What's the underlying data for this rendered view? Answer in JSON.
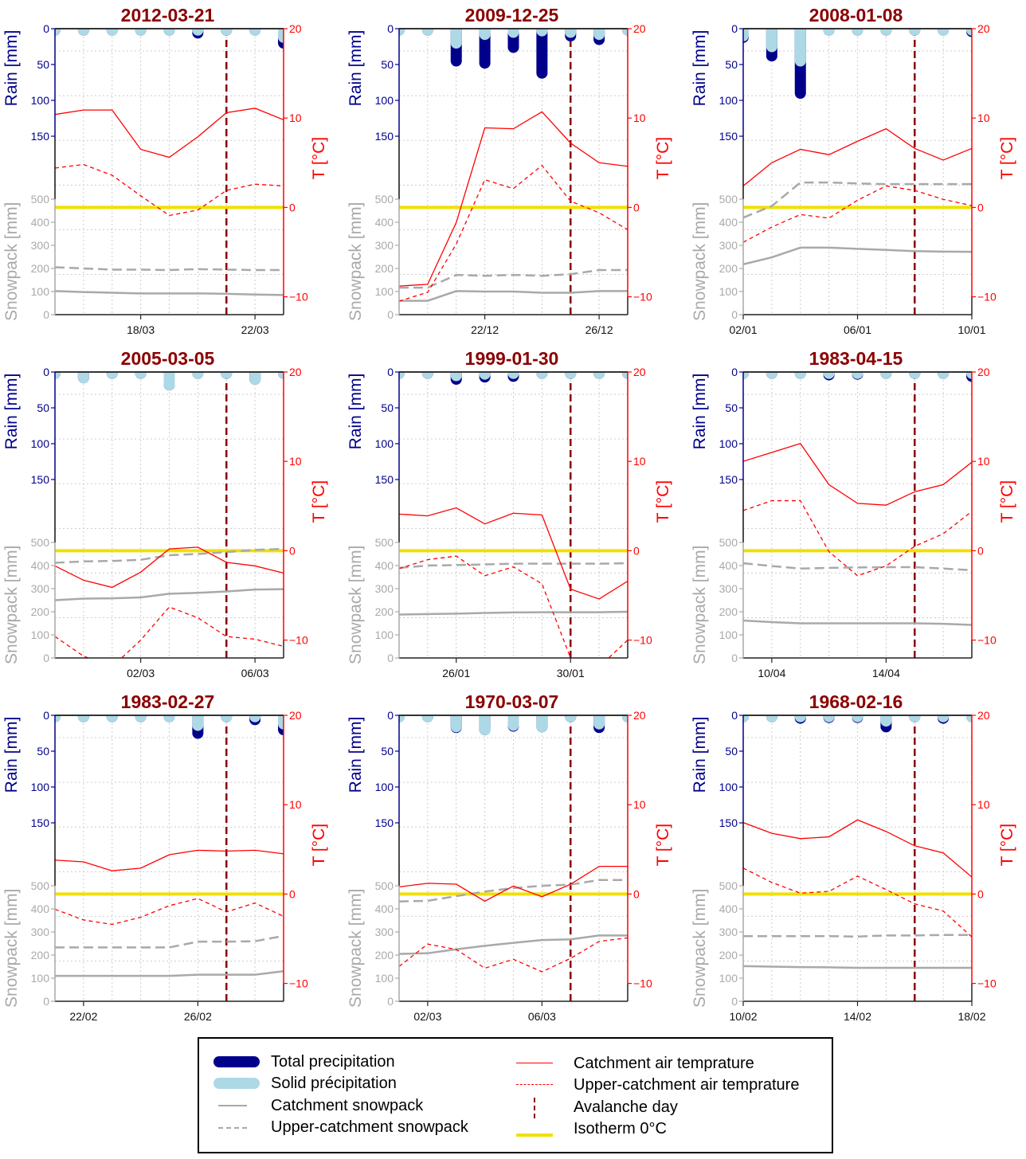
{
  "figure": {
    "axis_labels": {
      "rain": "Rain [mm]",
      "snowpack": "Snowpack [mm]",
      "temperature": "T [°C]"
    },
    "rain_ticks": [
      0,
      50,
      100,
      150
    ],
    "snow_ticks": [
      0,
      100,
      200,
      300,
      400,
      500
    ],
    "temp_ticks": [
      -10,
      0,
      10,
      20
    ],
    "colors": {
      "title": "#8b0000",
      "total_precip": "#00008b",
      "solid_precip": "#add8e6",
      "snowpack": "#a9a9a9",
      "temperature": "#ff0000",
      "avalanche": "#8b0000",
      "isotherm": "#f0e000",
      "rain_axis": "#00008b"
    }
  },
  "legend": {
    "items": [
      {
        "label": "Total precipitation",
        "key": "total_precip"
      },
      {
        "label": "Solid précipitation",
        "key": "solid_precip"
      },
      {
        "label": "Catchment snowpack",
        "key": "snow_catch"
      },
      {
        "label": "Upper-catchment snowpack",
        "key": "snow_upper"
      },
      {
        "label": "Catchment air temprature",
        "key": "temp_catch"
      },
      {
        "label": "Upper-catchment air temprature",
        "key": "temp_upper"
      },
      {
        "label": "Avalanche day",
        "key": "avalanche"
      },
      {
        "label": "Isotherm 0°C",
        "key": "isotherm"
      }
    ]
  },
  "chart_data": [
    {
      "type": "line",
      "title": "2012-03-21",
      "x_ticks": [
        {
          "day": 3,
          "label": "18/03"
        },
        {
          "day": 7,
          "label": "22/03"
        }
      ],
      "avalanche_day": 6,
      "rain_ylim": [
        0,
        200
      ],
      "snow_ylim": [
        0,
        500
      ],
      "temp_ylim": [
        -12,
        20
      ],
      "series": {
        "total_precip": [
          2,
          2,
          2,
          2,
          2,
          6,
          2,
          2,
          20
        ],
        "solid_precip": [
          2,
          2,
          2,
          2,
          2,
          2,
          2,
          2,
          12
        ],
        "snow_catch": [
          102,
          98,
          95,
          92,
          92,
          92,
          90,
          87,
          85
        ],
        "snow_upper": [
          205,
          200,
          195,
          195,
          193,
          197,
          195,
          193,
          193
        ],
        "temp_catch": [
          10.4,
          10.9,
          10.9,
          6.5,
          5.6,
          7.9,
          10.6,
          11.1,
          9.8
        ],
        "temp_upper": [
          4.4,
          4.8,
          3.6,
          1.3,
          -0.9,
          -0.3,
          1.9,
          2.6,
          2.4
        ]
      }
    },
    {
      "type": "line",
      "title": "2009-12-25",
      "x_ticks": [
        {
          "day": 3,
          "label": "22/12"
        },
        {
          "day": 7,
          "label": "26/12"
        }
      ],
      "avalanche_day": 6,
      "rain_ylim": [
        0,
        200
      ],
      "snow_ylim": [
        0,
        500
      ],
      "temp_ylim": [
        -12,
        20
      ],
      "series": {
        "total_precip": [
          2,
          2,
          45,
          48,
          26,
          62,
          10,
          15,
          2
        ],
        "solid_precip": [
          2,
          2,
          20,
          8,
          5,
          3,
          5,
          8,
          2
        ],
        "snow_catch": [
          60,
          60,
          102,
          100,
          100,
          95,
          95,
          102,
          102
        ],
        "snow_upper": [
          117,
          117,
          172,
          168,
          172,
          168,
          175,
          193,
          193
        ],
        "temp_catch": [
          -8.8,
          -8.6,
          -1.7,
          8.9,
          8.8,
          10.7,
          7.2,
          5.0,
          4.6
        ],
        "temp_upper": [
          -10.5,
          -9.5,
          -4.1,
          3.1,
          2.1,
          4.7,
          0.7,
          -0.6,
          -2.5
        ]
      }
    },
    {
      "type": "line",
      "title": "2008-01-08",
      "x_ticks": [
        {
          "day": 0,
          "label": "02/01"
        },
        {
          "day": 4,
          "label": "06/01"
        },
        {
          "day": 8,
          "label": "10/01"
        }
      ],
      "avalanche_day": 6,
      "rain_ylim": [
        0,
        200
      ],
      "snow_ylim": [
        0,
        500
      ],
      "temp_ylim": [
        -12,
        20
      ],
      "series": {
        "total_precip": [
          12,
          38,
          90,
          2,
          2,
          2,
          2,
          2,
          4
        ],
        "solid_precip": [
          10,
          25,
          45,
          2,
          2,
          2,
          2,
          2,
          2
        ],
        "snow_catch": [
          218,
          248,
          290,
          290,
          285,
          280,
          275,
          273,
          272
        ],
        "snow_upper": [
          420,
          470,
          572,
          572,
          568,
          565,
          565,
          565,
          565
        ],
        "temp_catch": [
          2.4,
          5.0,
          6.5,
          5.9,
          7.4,
          8.8,
          6.6,
          5.3,
          6.6
        ],
        "temp_upper": [
          -3.9,
          -2.2,
          -0.8,
          -1.2,
          0.8,
          2.4,
          1.9,
          0.9,
          0.2
        ]
      }
    },
    {
      "type": "line",
      "title": "2005-03-05",
      "x_ticks": [
        {
          "day": 3,
          "label": "02/03"
        },
        {
          "day": 7,
          "label": "06/03"
        }
      ],
      "avalanche_day": 6,
      "rain_ylim": [
        0,
        200
      ],
      "snow_ylim": [
        0,
        500
      ],
      "temp_ylim": [
        -12,
        20
      ],
      "series": {
        "total_precip": [
          2,
          8,
          2,
          2,
          18,
          2,
          2,
          10,
          2
        ],
        "solid_precip": [
          2,
          8,
          2,
          2,
          18,
          2,
          2,
          10,
          2
        ],
        "snow_catch": [
          250,
          257,
          258,
          262,
          278,
          282,
          288,
          296,
          298
        ],
        "snow_upper": [
          412,
          418,
          420,
          425,
          445,
          450,
          458,
          468,
          472
        ],
        "temp_catch": [
          -1.7,
          -3.3,
          -4.1,
          -2.4,
          0.2,
          0.4,
          -1.3,
          -1.7,
          -2.5
        ],
        "temp_upper": [
          -9.6,
          -11.8,
          -13,
          -10,
          -6.3,
          -7.5,
          -9.6,
          -9.9,
          -10.7
        ]
      }
    },
    {
      "type": "line",
      "title": "1999-01-30",
      "x_ticks": [
        {
          "day": 2,
          "label": "26/01"
        },
        {
          "day": 6,
          "label": "30/01"
        }
      ],
      "avalanche_day": 6,
      "rain_ylim": [
        0,
        200
      ],
      "snow_ylim": [
        0,
        500
      ],
      "temp_ylim": [
        -12,
        20
      ],
      "series": {
        "total_precip": [
          2,
          2,
          10,
          7,
          6,
          2,
          2,
          2,
          2
        ],
        "solid_precip": [
          2,
          2,
          5,
          3,
          2,
          2,
          2,
          2,
          2
        ],
        "snow_catch": [
          188,
          190,
          192,
          195,
          197,
          198,
          198,
          198,
          200
        ],
        "snow_upper": [
          390,
          400,
          402,
          405,
          408,
          408,
          408,
          408,
          410
        ],
        "temp_catch": [
          4.1,
          3.9,
          4.8,
          3.0,
          4.2,
          4.0,
          -4.3,
          -5.4,
          -3.4
        ],
        "temp_upper": [
          -2.0,
          -1.0,
          -0.6,
          -2.8,
          -1.8,
          -3.7,
          -12,
          -13,
          -10.0
        ]
      }
    },
    {
      "type": "line",
      "title": "1983-04-15",
      "x_ticks": [
        {
          "day": 1,
          "label": "10/04"
        },
        {
          "day": 5,
          "label": "14/04"
        }
      ],
      "avalanche_day": 6,
      "rain_ylim": [
        0,
        200
      ],
      "snow_ylim": [
        0,
        500
      ],
      "temp_ylim": [
        -12,
        20
      ],
      "series": {
        "total_precip": [
          2,
          2,
          2,
          4,
          3,
          2,
          2,
          2,
          6
        ],
        "solid_precip": [
          2,
          2,
          2,
          2,
          2,
          2,
          2,
          2,
          2
        ],
        "snow_catch": [
          162,
          155,
          150,
          150,
          150,
          150,
          150,
          148,
          143
        ],
        "snow_upper": [
          410,
          398,
          387,
          390,
          392,
          393,
          393,
          387,
          380
        ],
        "temp_catch": [
          10.0,
          11.0,
          12.0,
          7.4,
          5.3,
          5.1,
          6.6,
          7.4,
          9.9
        ],
        "temp_upper": [
          4.5,
          5.6,
          5.6,
          -0.1,
          -2.8,
          -1.7,
          0.5,
          1.9,
          4.4
        ]
      }
    },
    {
      "type": "line",
      "title": "1983-02-27",
      "x_ticks": [
        {
          "day": 1,
          "label": "22/02"
        },
        {
          "day": 5,
          "label": "26/02"
        }
      ],
      "avalanche_day": 6,
      "rain_ylim": [
        0,
        200
      ],
      "snow_ylim": [
        0,
        500
      ],
      "temp_ylim": [
        -12,
        20
      ],
      "series": {
        "total_precip": [
          2,
          2,
          2,
          2,
          2,
          25,
          2,
          6,
          20
        ],
        "solid_precip": [
          2,
          2,
          2,
          2,
          2,
          14,
          2,
          2,
          12
        ],
        "snow_catch": [
          110,
          110,
          110,
          110,
          110,
          115,
          115,
          115,
          130
        ],
        "snow_upper": [
          233,
          233,
          233,
          233,
          233,
          258,
          258,
          260,
          283
        ],
        "temp_catch": [
          3.8,
          3.6,
          2.6,
          2.9,
          4.4,
          4.9,
          4.8,
          4.9,
          4.5
        ],
        "temp_upper": [
          -1.7,
          -2.9,
          -3.4,
          -2.6,
          -1.3,
          -0.5,
          -2.0,
          -1.0,
          -2.5
        ]
      }
    },
    {
      "type": "line",
      "title": "1970-03-07",
      "x_ticks": [
        {
          "day": 1,
          "label": "02/03"
        },
        {
          "day": 5,
          "label": "06/03"
        }
      ],
      "avalanche_day": 6,
      "rain_ylim": [
        0,
        200
      ],
      "snow_ylim": [
        0,
        500
      ],
      "temp_ylim": [
        -12,
        20
      ],
      "series": {
        "total_precip": [
          2,
          2,
          17,
          20,
          15,
          16,
          2,
          17,
          2
        ],
        "solid_precip": [
          2,
          2,
          16,
          20,
          14,
          16,
          2,
          12,
          2
        ],
        "snow_catch": [
          205,
          208,
          225,
          240,
          253,
          265,
          268,
          285,
          285
        ],
        "snow_upper": [
          432,
          435,
          455,
          475,
          490,
          500,
          505,
          525,
          525
        ],
        "temp_catch": [
          0.8,
          1.2,
          1.1,
          -0.8,
          0.9,
          -0.3,
          1.1,
          3.1,
          3.1
        ],
        "temp_upper": [
          -8.1,
          -5.6,
          -6.2,
          -8.3,
          -7.3,
          -8.7,
          -7.2,
          -5.3,
          -4.9
        ]
      }
    },
    {
      "type": "line",
      "title": "1968-02-16",
      "x_ticks": [
        {
          "day": 0,
          "label": "10/02"
        },
        {
          "day": 4,
          "label": "14/02"
        },
        {
          "day": 8,
          "label": "18/02"
        }
      ],
      "avalanche_day": 6,
      "rain_ylim": [
        0,
        200
      ],
      "snow_ylim": [
        0,
        500
      ],
      "temp_ylim": [
        -12,
        20
      ],
      "series": {
        "total_precip": [
          2,
          2,
          4,
          3,
          3,
          16,
          2,
          4,
          2
        ],
        "solid_precip": [
          2,
          2,
          2,
          2,
          2,
          8,
          2,
          2,
          2
        ],
        "snow_catch": [
          152,
          150,
          148,
          147,
          145,
          145,
          145,
          145,
          145
        ],
        "snow_upper": [
          282,
          282,
          282,
          282,
          280,
          285,
          285,
          287,
          287
        ],
        "temp_catch": [
          8.0,
          6.8,
          6.2,
          6.4,
          8.3,
          7.0,
          5.4,
          4.6,
          1.9
        ],
        "temp_upper": [
          2.9,
          1.3,
          0.1,
          0.3,
          2.0,
          0.5,
          -1.1,
          -1.9,
          -4.8
        ]
      }
    }
  ]
}
